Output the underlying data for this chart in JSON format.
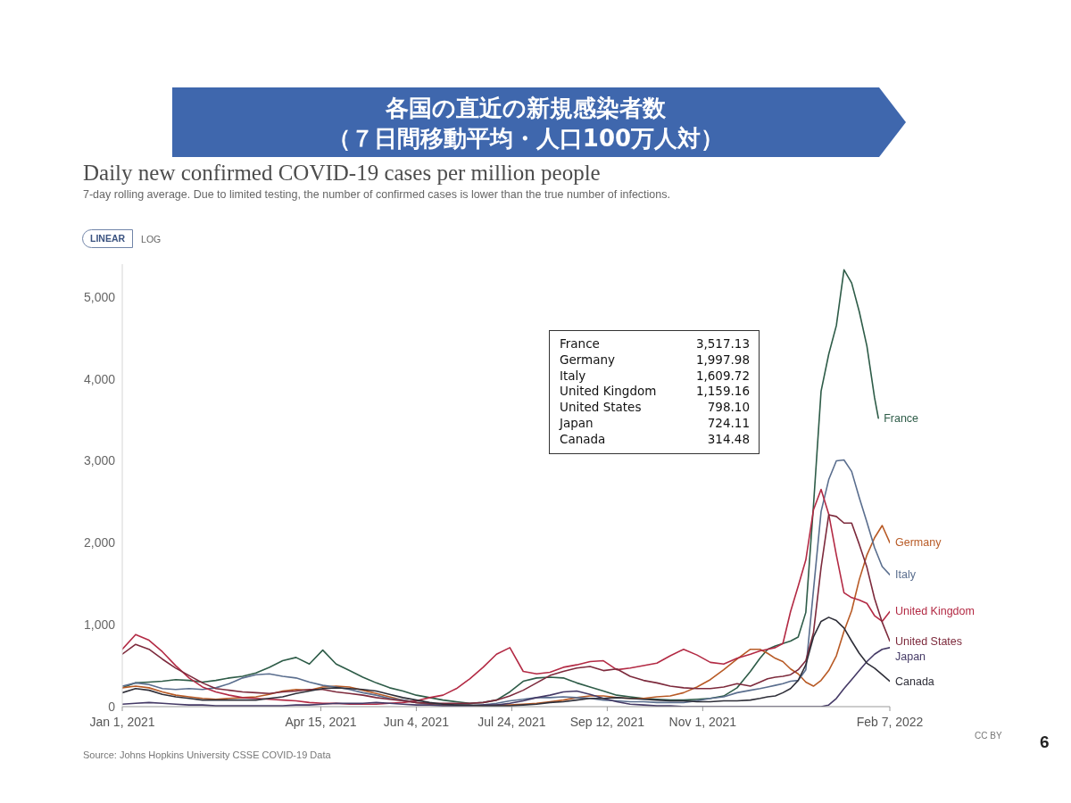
{
  "chart_data": {
    "type": "line",
    "title": "Daily new confirmed COVID-19 cases per million people",
    "subtitle": "7-day rolling average. Due to limited testing, the number of confirmed cases is lower than the true number of infections.",
    "annotations": [
      "各国の直近の新規感染者数",
      "（７日間移動平均・人口100万人対）",
      "LINEAR",
      "LOG",
      "Source: Johns Hopkins University CSSE COVID-19 Data",
      "CC BY",
      "6",
      "France",
      "3,517.13",
      "Germany",
      "1,997.98",
      "Italy",
      "1,609.72",
      "United Kingdom",
      "1,159.16",
      "United States",
      "798.10",
      "Japan",
      "724.11",
      "Canada",
      "314.48"
    ],
    "x": [
      "2021-01-01",
      "2021-01-08",
      "2021-01-15",
      "2021-01-22",
      "2021-01-29",
      "2021-02-05",
      "2021-02-12",
      "2021-02-19",
      "2021-02-26",
      "2021-03-05",
      "2021-03-12",
      "2021-03-19",
      "2021-03-26",
      "2021-04-02",
      "2021-04-09",
      "2021-04-16",
      "2021-04-23",
      "2021-04-30",
      "2021-05-07",
      "2021-05-14",
      "2021-05-21",
      "2021-05-28",
      "2021-06-04",
      "2021-06-11",
      "2021-06-18",
      "2021-06-25",
      "2021-07-02",
      "2021-07-09",
      "2021-07-16",
      "2021-07-23",
      "2021-07-30",
      "2021-08-06",
      "2021-08-13",
      "2021-08-20",
      "2021-08-27",
      "2021-09-03",
      "2021-09-10",
      "2021-09-17",
      "2021-09-24",
      "2021-10-01",
      "2021-10-08",
      "2021-10-15",
      "2021-10-22",
      "2021-10-29",
      "2021-11-05",
      "2021-11-12",
      "2021-11-19",
      "2021-11-26",
      "2021-12-01",
      "2021-12-05",
      "2021-12-09",
      "2021-12-13",
      "2021-12-17",
      "2021-12-21",
      "2021-12-25",
      "2021-12-29",
      "2022-01-02",
      "2022-01-06",
      "2022-01-10",
      "2022-01-14",
      "2022-01-18",
      "2022-01-22",
      "2022-01-26",
      "2022-01-30",
      "2022-02-03",
      "2022-02-07"
    ],
    "xlim": [
      "2021-01-01",
      "2022-02-07"
    ],
    "xticks": [
      {
        "value": "2021-01-01",
        "label": "Jan 1, 2021"
      },
      {
        "value": "2021-04-15",
        "label": "Apr 15, 2021"
      },
      {
        "value": "2021-06-04",
        "label": "Jun 4, 2021"
      },
      {
        "value": "2021-07-24",
        "label": "Jul 24, 2021"
      },
      {
        "value": "2021-09-12",
        "label": "Sep 12, 2021"
      },
      {
        "value": "2021-11-01",
        "label": "Nov 1, 2021"
      },
      {
        "value": "2022-02-07",
        "label": "Feb 7, 2022"
      }
    ],
    "ylim": [
      0,
      5400
    ],
    "yticks": [
      0,
      {
        "value": 1000,
        "label": "1,000"
      },
      {
        "value": 2000,
        "label": "2,000"
      },
      {
        "value": 3000,
        "label": "3,000"
      },
      {
        "value": 4000,
        "label": "4,000"
      },
      {
        "value": 5000,
        "label": "5,000"
      }
    ],
    "series": [
      {
        "name": "France",
        "color": "#2e5c48",
        "x": [
          "2021-01-01",
          "2021-01-08",
          "2021-01-15",
          "2021-01-22",
          "2021-01-29",
          "2021-02-05",
          "2021-02-12",
          "2021-02-19",
          "2021-02-26",
          "2021-03-05",
          "2021-03-12",
          "2021-03-19",
          "2021-03-26",
          "2021-04-02",
          "2021-04-09",
          "2021-04-16",
          "2021-04-23",
          "2021-04-30",
          "2021-05-07",
          "2021-05-14",
          "2021-05-21",
          "2021-05-28",
          "2021-06-04",
          "2021-06-11",
          "2021-06-18",
          "2021-06-25",
          "2021-07-02",
          "2021-07-09",
          "2021-07-16",
          "2021-07-23",
          "2021-07-30",
          "2021-08-06",
          "2021-08-13",
          "2021-08-20",
          "2021-08-27",
          "2021-09-03",
          "2021-09-10",
          "2021-09-17",
          "2021-09-24",
          "2021-10-01",
          "2021-10-08",
          "2021-10-15",
          "2021-10-22",
          "2021-10-29",
          "2021-11-05",
          "2021-11-12",
          "2021-11-19",
          "2021-11-26",
          "2021-12-01",
          "2021-12-05",
          "2021-12-09",
          "2021-12-13",
          "2021-12-17",
          "2021-12-21",
          "2021-12-25",
          "2021-12-29",
          "2022-01-02",
          "2022-01-06",
          "2022-01-10",
          "2022-01-14",
          "2022-01-18",
          "2022-01-22",
          "2022-01-26",
          "2022-01-30",
          "2022-02-01"
        ],
        "values": [
          230,
          290,
          300,
          310,
          330,
          320,
          300,
          320,
          350,
          370,
          410,
          480,
          560,
          600,
          520,
          690,
          520,
          440,
          360,
          290,
          230,
          190,
          140,
          110,
          80,
          60,
          40,
          50,
          80,
          180,
          310,
          350,
          360,
          350,
          290,
          240,
          190,
          140,
          120,
          100,
          90,
          80,
          80,
          90,
          100,
          130,
          230,
          430,
          590,
          700,
          740,
          770,
          800,
          850,
          1150,
          2450,
          3850,
          4300,
          4650,
          5330,
          5170,
          4820,
          4400,
          3770,
          3520
        ]
      },
      {
        "name": "Germany",
        "color": "#b85a25",
        "values": [
          230,
          250,
          230,
          180,
          140,
          120,
          100,
          90,
          100,
          110,
          120,
          150,
          190,
          210,
          200,
          240,
          250,
          240,
          200,
          160,
          120,
          80,
          50,
          30,
          20,
          10,
          10,
          10,
          20,
          20,
          30,
          40,
          60,
          80,
          110,
          130,
          130,
          110,
          100,
          100,
          120,
          130,
          170,
          240,
          330,
          450,
          580,
          700,
          700,
          650,
          590,
          550,
          460,
          400,
          300,
          250,
          320,
          440,
          620,
          920,
          1170,
          1550,
          1850,
          2060,
          2210,
          2000
        ]
      },
      {
        "name": "Italy",
        "color": "#5a6e8e",
        "values": [
          250,
          290,
          270,
          220,
          210,
          220,
          210,
          230,
          280,
          350,
          390,
          400,
          370,
          350,
          300,
          260,
          240,
          210,
          170,
          140,
          100,
          80,
          50,
          40,
          30,
          20,
          10,
          20,
          40,
          70,
          90,
          110,
          110,
          120,
          110,
          100,
          80,
          70,
          60,
          60,
          50,
          50,
          50,
          70,
          100,
          120,
          170,
          200,
          220,
          240,
          260,
          280,
          310,
          320,
          450,
          1420,
          2380,
          2770,
          3000,
          3010,
          2870,
          2550,
          2250,
          1940,
          1710,
          1610
        ]
      },
      {
        "name": "United Kingdom",
        "color": "#b32a44",
        "values": [
          700,
          880,
          810,
          670,
          500,
          350,
          240,
          180,
          140,
          110,
          100,
          90,
          80,
          70,
          50,
          40,
          40,
          30,
          30,
          30,
          40,
          50,
          70,
          110,
          140,
          220,
          340,
          480,
          640,
          720,
          430,
          400,
          420,
          480,
          510,
          550,
          560,
          450,
          470,
          500,
          530,
          620,
          700,
          630,
          540,
          520,
          590,
          640,
          680,
          700,
          720,
          770,
          1160,
          1470,
          1790,
          2400,
          2650,
          2350,
          1850,
          1390,
          1330,
          1300,
          1260,
          1110,
          1040,
          1160
        ]
      },
      {
        "name": "United States",
        "color": "#7d2a3c",
        "values": [
          640,
          760,
          700,
          580,
          470,
          380,
          290,
          220,
          200,
          180,
          170,
          160,
          180,
          190,
          210,
          210,
          180,
          160,
          140,
          110,
          90,
          70,
          50,
          40,
          40,
          40,
          40,
          50,
          80,
          130,
          200,
          290,
          380,
          430,
          470,
          490,
          440,
          460,
          370,
          320,
          290,
          250,
          230,
          220,
          220,
          240,
          280,
          250,
          300,
          340,
          360,
          370,
          390,
          450,
          560,
          900,
          1700,
          2340,
          2320,
          2240,
          2240,
          1980,
          1700,
          1320,
          1030,
          800
        ]
      },
      {
        "name": "Japan",
        "color": "#453a66",
        "values": [
          30,
          40,
          50,
          40,
          30,
          20,
          20,
          10,
          10,
          10,
          10,
          10,
          10,
          20,
          20,
          30,
          40,
          40,
          40,
          50,
          40,
          30,
          20,
          20,
          10,
          10,
          10,
          20,
          20,
          40,
          70,
          110,
          140,
          180,
          190,
          150,
          100,
          60,
          30,
          20,
          10,
          10,
          0,
          0,
          0,
          0,
          0,
          0,
          0,
          0,
          0,
          0,
          0,
          0,
          0,
          0,
          0,
          20,
          100,
          220,
          330,
          440,
          550,
          640,
          700,
          720
        ]
      },
      {
        "name": "Canada",
        "color": "#2e2e38",
        "values": [
          170,
          220,
          200,
          150,
          120,
          100,
          80,
          80,
          80,
          80,
          80,
          100,
          120,
          160,
          190,
          220,
          230,
          220,
          210,
          190,
          150,
          110,
          80,
          50,
          30,
          20,
          20,
          10,
          10,
          10,
          20,
          30,
          50,
          60,
          80,
          100,
          100,
          110,
          100,
          90,
          80,
          70,
          70,
          60,
          60,
          70,
          70,
          80,
          100,
          120,
          130,
          170,
          220,
          320,
          510,
          850,
          1040,
          1090,
          1050,
          960,
          800,
          650,
          530,
          470,
          390,
          310
        ]
      }
    ]
  }
}
